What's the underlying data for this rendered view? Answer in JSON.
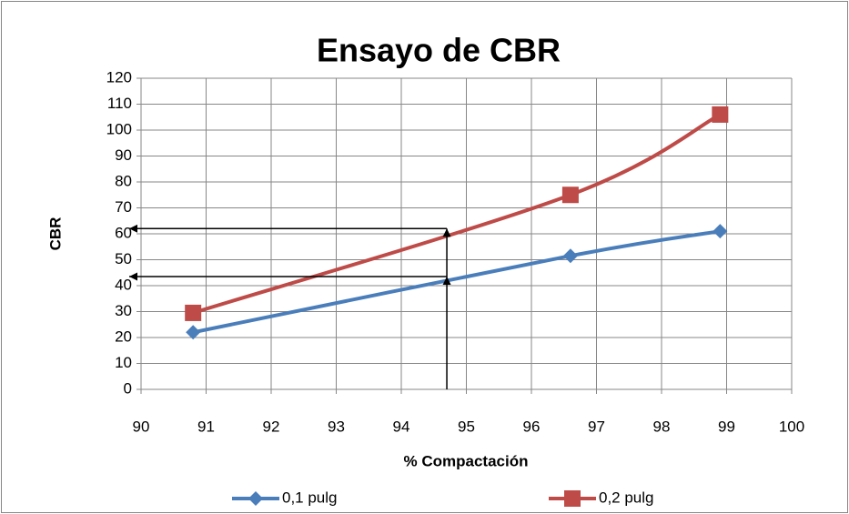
{
  "chart_data": {
    "type": "line",
    "title": "Ensayo de CBR",
    "x_label": "% Compactación",
    "y_label": "CBR",
    "series": [
      {
        "name": "0,1 pulg",
        "color": "#4a7ebb",
        "marker": "diamond",
        "x": [
          90.8,
          96.6,
          98.9
        ],
        "values": [
          22,
          51.5,
          61
        ]
      },
      {
        "name": "0,2 pulg",
        "color": "#be4b48",
        "marker": "square",
        "x": [
          90.8,
          96.6,
          98.9
        ],
        "values": [
          29.5,
          75,
          106
        ]
      }
    ],
    "reference_lines": {
      "x": 94.7,
      "y": [
        43.5,
        62
      ]
    },
    "xlim": [
      90,
      100
    ],
    "xticks": [
      90,
      91,
      92,
      93,
      94,
      95,
      96,
      97,
      98,
      99,
      100
    ],
    "ylim": [
      0,
      120
    ],
    "yticks": [
      0,
      10,
      20,
      30,
      40,
      50,
      60,
      70,
      80,
      90,
      100,
      110,
      120
    ],
    "grid": true,
    "legend": "bottom"
  }
}
